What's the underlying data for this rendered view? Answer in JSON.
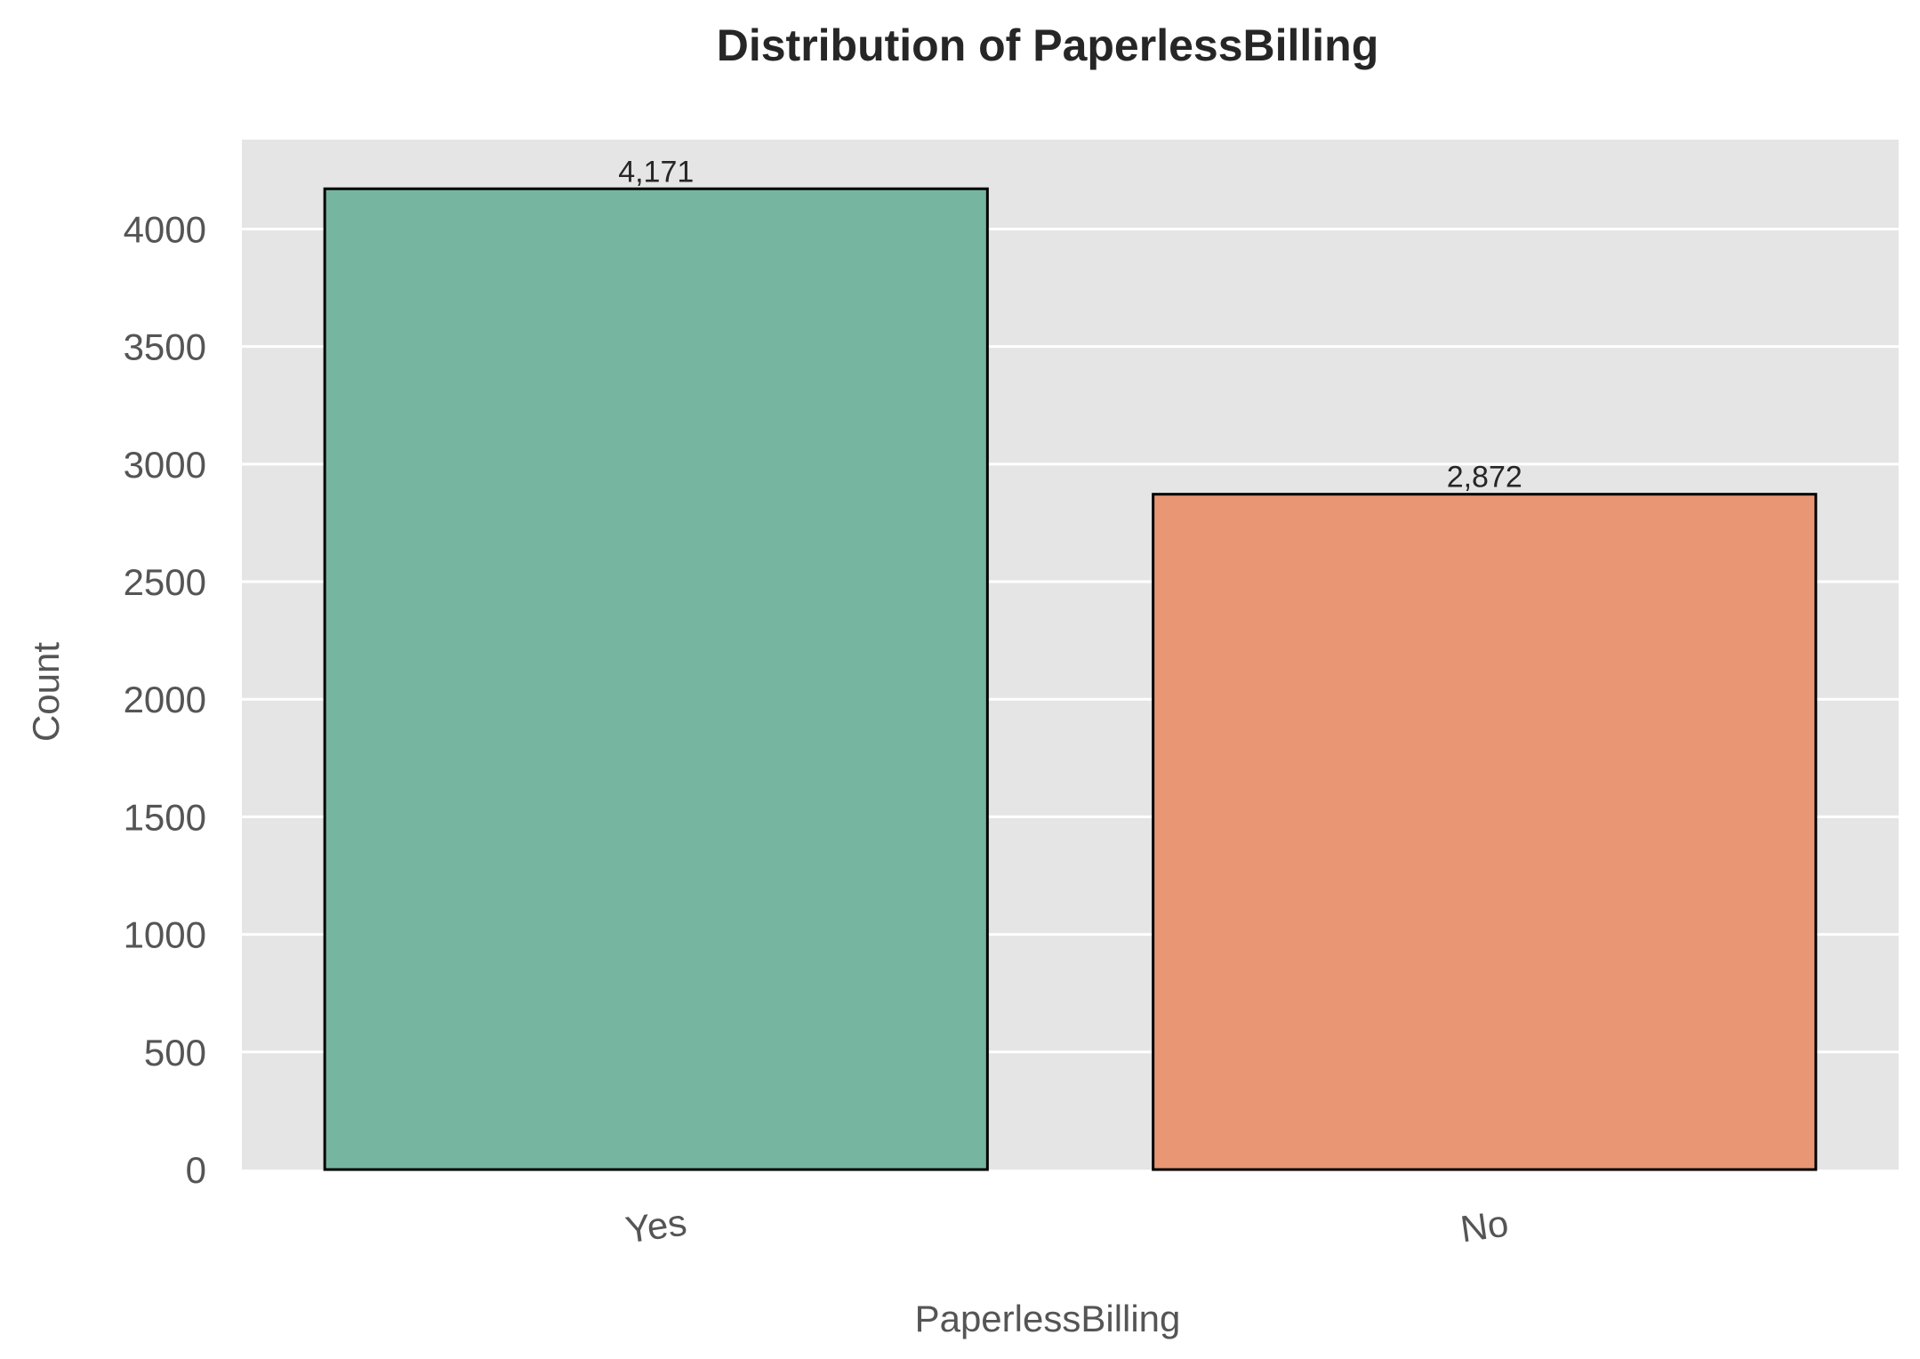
{
  "chart_data": {
    "type": "bar",
    "title": "Distribution of PaperlessBilling",
    "xlabel": "PaperlessBilling",
    "ylabel": "Count",
    "categories": [
      "Yes",
      "No"
    ],
    "values": [
      4171,
      2872
    ],
    "value_labels": [
      "4,171",
      "2,872"
    ],
    "ylim": [
      0,
      4380
    ],
    "yticks": [
      0,
      500,
      1000,
      1500,
      2000,
      2500,
      3000,
      3500,
      4000
    ],
    "grid": true,
    "colors": {
      "plot_background": "#e5e5e5",
      "grid": "#ffffff",
      "bar_edge": "#000000",
      "bars": [
        "#76b5a0",
        "#e99675"
      ]
    }
  }
}
